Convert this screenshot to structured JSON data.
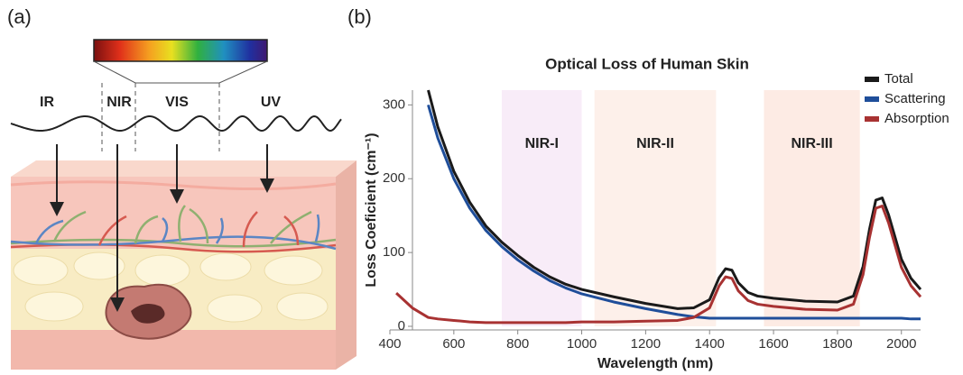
{
  "panels": {
    "a": "(a)",
    "b": "(b)"
  },
  "illustration": {
    "labels": [
      "IR",
      "NIR",
      "VIS",
      "UV"
    ]
  },
  "chart_data": {
    "type": "line",
    "title": "Optical Loss of Human Skin",
    "x_label": "Wavelength (nm)",
    "y_label": "Loss Coeficient (cm⁻¹)",
    "xlim": [
      400,
      2060
    ],
    "ylim": [
      0,
      320
    ],
    "xticks": [
      400,
      600,
      800,
      1000,
      1200,
      1400,
      1600,
      1800,
      2000
    ],
    "yticks": [
      0,
      100,
      200,
      300
    ],
    "legend": "upper right",
    "bands": [
      {
        "label": "NIR-I",
        "start": 750,
        "end": 1000,
        "color": "#f8ecf8"
      },
      {
        "label": "NIR-II",
        "start": 1040,
        "end": 1420,
        "color": "#fdf0ea"
      },
      {
        "label": "NIR-III",
        "start": 1570,
        "end": 1870,
        "color": "#fdebe4"
      }
    ],
    "x": [
      420,
      470,
      520,
      550,
      600,
      650,
      700,
      750,
      800,
      850,
      900,
      950,
      1000,
      1100,
      1200,
      1300,
      1350,
      1400,
      1430,
      1450,
      1470,
      1490,
      1520,
      1550,
      1600,
      1700,
      1800,
      1850,
      1880,
      1900,
      1920,
      1940,
      1960,
      1980,
      2000,
      2030,
      2060
    ],
    "series": [
      {
        "name": "Total",
        "color": "#1a1a1a",
        "values": [
          null,
          null,
          320,
          270,
          210,
          168,
          136,
          114,
          96,
          80,
          67,
          57,
          50,
          40,
          31,
          24,
          25,
          36,
          66,
          78,
          76,
          59,
          46,
          41,
          38,
          34,
          33,
          41,
          81,
          131,
          171,
          174,
          151,
          121,
          91,
          65,
          50
        ]
      },
      {
        "name": "Scattering",
        "color": "#1f4e9a",
        "values": [
          null,
          null,
          300,
          255,
          200,
          160,
          130,
          108,
          90,
          75,
          62,
          52,
          44,
          33,
          24,
          16,
          13,
          11,
          11,
          11,
          11,
          11,
          11,
          11,
          11,
          11,
          11,
          11,
          11,
          11,
          11,
          11,
          11,
          11,
          11,
          10,
          10
        ]
      },
      {
        "name": "Absorption",
        "color": "#a83232",
        "values": [
          45,
          25,
          12,
          10,
          8,
          6,
          5,
          5,
          5,
          5,
          5,
          5,
          6,
          6,
          7,
          8,
          12,
          25,
          55,
          67,
          65,
          48,
          35,
          30,
          27,
          23,
          22,
          30,
          70,
          120,
          160,
          163,
          140,
          110,
          80,
          55,
          40
        ]
      }
    ]
  }
}
